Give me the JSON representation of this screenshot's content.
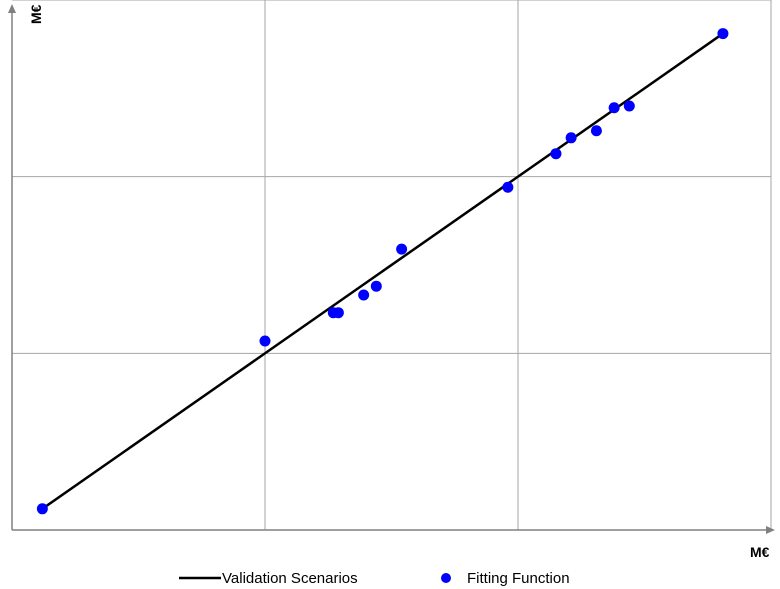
{
  "chart_data": {
    "type": "scatter",
    "xlabel": "M€",
    "ylabel": "M€",
    "xlim": [
      0,
      3
    ],
    "ylim": [
      0,
      3
    ],
    "grid": true,
    "tick_labels_shown": false,
    "legend_position": "bottom-center",
    "series": [
      {
        "name": "Validation Scenarios",
        "kind": "line",
        "color": "#000000",
        "x": [
          0.12,
          2.81
        ],
        "y": [
          0.12,
          2.81
        ]
      },
      {
        "name": "Fitting Function",
        "kind": "scatter",
        "color": "#0000ff",
        "x": [
          0.12,
          1.0,
          1.27,
          1.29,
          1.39,
          1.44,
          1.54,
          1.96,
          2.15,
          2.21,
          2.31,
          2.38,
          2.44,
          2.81
        ],
        "y": [
          0.12,
          1.07,
          1.23,
          1.23,
          1.33,
          1.38,
          1.59,
          1.94,
          2.13,
          2.22,
          2.26,
          2.39,
          2.4,
          2.81
        ]
      }
    ]
  },
  "colors": {
    "line": "#000000",
    "points": "#0000ff",
    "grid": "#a6a6a6",
    "axis": "#808080"
  }
}
